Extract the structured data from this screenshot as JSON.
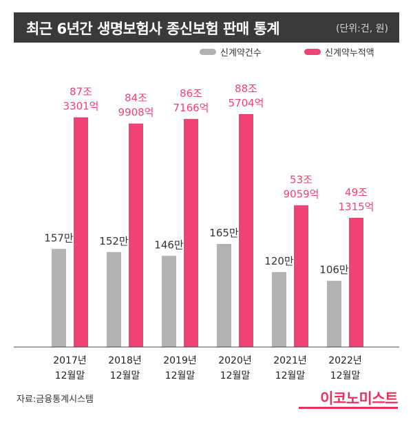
{
  "header": {
    "title": "최근 6년간 생명보험사 종신보험 판매 통계",
    "unit": "(단위:건, 원)"
  },
  "legend": {
    "contracts": "신계약건수",
    "amount": "신계약누적액"
  },
  "colors": {
    "contracts": "#b2b2b2",
    "amount": "#f04375",
    "axis": "#444444"
  },
  "footer": {
    "source": "자료:금융통계시스템",
    "brand": "이코노미스트"
  },
  "chart_data": {
    "type": "bar",
    "title": "최근 6년간 생명보험사 종신보험 판매 통계",
    "unit": "(단위:건, 원)",
    "categories": [
      [
        "2017년",
        "12월말"
      ],
      [
        "2018년",
        "12월말"
      ],
      [
        "2019년",
        "12월말"
      ],
      [
        "2020년",
        "12월말"
      ],
      [
        "2021년",
        "12월말"
      ],
      [
        "2022년",
        "12월말"
      ]
    ],
    "series": [
      {
        "name": "신계약건수",
        "values": [
          1570000,
          1520000,
          1460000,
          1650000,
          1200000,
          1060000
        ],
        "labels": [
          [
            "157만"
          ],
          [
            "152만"
          ],
          [
            "146만"
          ],
          [
            "165만"
          ],
          [
            "120만"
          ],
          [
            "106만"
          ]
        ]
      },
      {
        "name": "신계약누적액",
        "values": [
          873301,
          849908,
          867166,
          885704,
          539059,
          491315
        ],
        "labels": [
          [
            "87조",
            "3301억"
          ],
          [
            "84조",
            "9908억"
          ],
          [
            "86조",
            "7166억"
          ],
          [
            "88조",
            "5704억"
          ],
          [
            "53조",
            "9059억"
          ],
          [
            "49조",
            "1315억"
          ]
        ]
      }
    ],
    "legend": "top-right",
    "grid": false
  }
}
